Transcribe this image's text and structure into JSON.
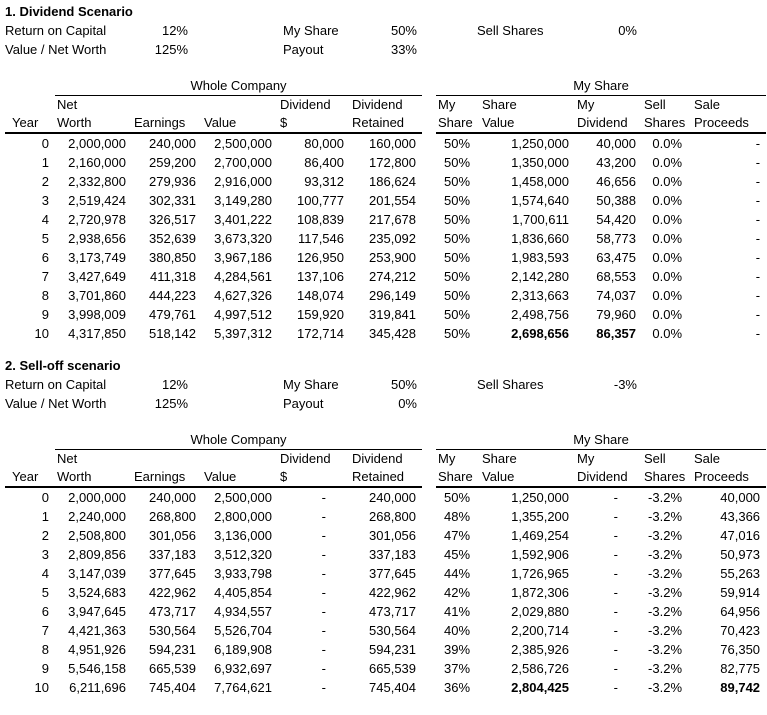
{
  "colors": {
    "text": "#000000",
    "background": "#ffffff",
    "border": "#000000"
  },
  "scenarios": [
    {
      "title": "1. Dividend Scenario",
      "params": [
        [
          {
            "label": "Return on Capital",
            "value": "12%"
          },
          {
            "label": "My Share",
            "value": "50%"
          },
          {
            "label": "Sell Shares",
            "value": "0%"
          }
        ],
        [
          {
            "label": "Value / Net Worth",
            "value": "125%"
          },
          {
            "label": "Payout",
            "value": "33%"
          }
        ]
      ],
      "table": {
        "group_headers": [
          "Whole Company",
          "My Share"
        ],
        "column_keys": [
          "year",
          "net-worth",
          "earnings",
          "value",
          "dividend-usd",
          "dividend-retained",
          "my-share-pct",
          "share-value",
          "my-dividend",
          "sell-shares-pct",
          "sale-proceeds"
        ],
        "column_headers": [
          [
            "Year"
          ],
          [
            "Net",
            "Worth"
          ],
          [
            "Earnings"
          ],
          [
            "Value"
          ],
          [
            "Dividend",
            "$"
          ],
          [
            "Dividend",
            "Retained"
          ],
          [
            "My",
            "Share"
          ],
          [
            "Share",
            "Value"
          ],
          [
            "My",
            "Dividend"
          ],
          [
            "Sell",
            "Shares"
          ],
          [
            "Sale",
            "Proceeds"
          ]
        ],
        "rows": [
          [
            "0",
            "2,000,000",
            "240,000",
            "2,500,000",
            "80,000",
            "160,000",
            "50%",
            "1,250,000",
            "40,000",
            "0.0%",
            "-"
          ],
          [
            "1",
            "2,160,000",
            "259,200",
            "2,700,000",
            "86,400",
            "172,800",
            "50%",
            "1,350,000",
            "43,200",
            "0.0%",
            "-"
          ],
          [
            "2",
            "2,332,800",
            "279,936",
            "2,916,000",
            "93,312",
            "186,624",
            "50%",
            "1,458,000",
            "46,656",
            "0.0%",
            "-"
          ],
          [
            "3",
            "2,519,424",
            "302,331",
            "3,149,280",
            "100,777",
            "201,554",
            "50%",
            "1,574,640",
            "50,388",
            "0.0%",
            "-"
          ],
          [
            "4",
            "2,720,978",
            "326,517",
            "3,401,222",
            "108,839",
            "217,678",
            "50%",
            "1,700,611",
            "54,420",
            "0.0%",
            "-"
          ],
          [
            "5",
            "2,938,656",
            "352,639",
            "3,673,320",
            "117,546",
            "235,092",
            "50%",
            "1,836,660",
            "58,773",
            "0.0%",
            "-"
          ],
          [
            "6",
            "3,173,749",
            "380,850",
            "3,967,186",
            "126,950",
            "253,900",
            "50%",
            "1,983,593",
            "63,475",
            "0.0%",
            "-"
          ],
          [
            "7",
            "3,427,649",
            "411,318",
            "4,284,561",
            "137,106",
            "274,212",
            "50%",
            "2,142,280",
            "68,553",
            "0.0%",
            "-"
          ],
          [
            "8",
            "3,701,860",
            "444,223",
            "4,627,326",
            "148,074",
            "296,149",
            "50%",
            "2,313,663",
            "74,037",
            "0.0%",
            "-"
          ],
          [
            "9",
            "3,998,009",
            "479,761",
            "4,997,512",
            "159,920",
            "319,841",
            "50%",
            "2,498,756",
            "79,960",
            "0.0%",
            "-"
          ],
          [
            "10",
            "4,317,850",
            "518,142",
            "5,397,312",
            "172,714",
            "345,428",
            "50%",
            "2,698,656",
            "86,357",
            "0.0%",
            "-"
          ]
        ],
        "bold_cells": [
          [
            10,
            7
          ],
          [
            10,
            8
          ]
        ]
      }
    },
    {
      "title": "2. Sell-off scenario",
      "params": [
        [
          {
            "label": "Return on Capital",
            "value": "12%"
          },
          {
            "label": "My Share",
            "value": "50%"
          },
          {
            "label": "Sell Shares",
            "value": "-3%"
          }
        ],
        [
          {
            "label": "Value / Net Worth",
            "value": "125%"
          },
          {
            "label": "Payout",
            "value": "0%"
          }
        ]
      ],
      "table": {
        "group_headers": [
          "Whole Company",
          "My Share"
        ],
        "column_keys": [
          "year",
          "net-worth",
          "earnings",
          "value",
          "dividend-usd",
          "dividend-retained",
          "my-share-pct",
          "share-value",
          "my-dividend",
          "sell-shares-pct",
          "sale-proceeds"
        ],
        "column_headers": [
          [
            "Year"
          ],
          [
            "Net",
            "Worth"
          ],
          [
            "Earnings"
          ],
          [
            "Value"
          ],
          [
            "Dividend",
            "$"
          ],
          [
            "Dividend",
            "Retained"
          ],
          [
            "My",
            "Share"
          ],
          [
            "Share",
            "Value"
          ],
          [
            "My",
            "Dividend"
          ],
          [
            "Sell",
            "Shares"
          ],
          [
            "Sale",
            "Proceeds"
          ]
        ],
        "rows": [
          [
            "0",
            "2,000,000",
            "240,000",
            "2,500,000",
            "-",
            "240,000",
            "50%",
            "1,250,000",
            "-",
            "-3.2%",
            "40,000"
          ],
          [
            "1",
            "2,240,000",
            "268,800",
            "2,800,000",
            "-",
            "268,800",
            "48%",
            "1,355,200",
            "-",
            "-3.2%",
            "43,366"
          ],
          [
            "2",
            "2,508,800",
            "301,056",
            "3,136,000",
            "-",
            "301,056",
            "47%",
            "1,469,254",
            "-",
            "-3.2%",
            "47,016"
          ],
          [
            "3",
            "2,809,856",
            "337,183",
            "3,512,320",
            "-",
            "337,183",
            "45%",
            "1,592,906",
            "-",
            "-3.2%",
            "50,973"
          ],
          [
            "4",
            "3,147,039",
            "377,645",
            "3,933,798",
            "-",
            "377,645",
            "44%",
            "1,726,965",
            "-",
            "-3.2%",
            "55,263"
          ],
          [
            "5",
            "3,524,683",
            "422,962",
            "4,405,854",
            "-",
            "422,962",
            "42%",
            "1,872,306",
            "-",
            "-3.2%",
            "59,914"
          ],
          [
            "6",
            "3,947,645",
            "473,717",
            "4,934,557",
            "-",
            "473,717",
            "41%",
            "2,029,880",
            "-",
            "-3.2%",
            "64,956"
          ],
          [
            "7",
            "4,421,363",
            "530,564",
            "5,526,704",
            "-",
            "530,564",
            "40%",
            "2,200,714",
            "-",
            "-3.2%",
            "70,423"
          ],
          [
            "8",
            "4,951,926",
            "594,231",
            "6,189,908",
            "-",
            "594,231",
            "39%",
            "2,385,926",
            "-",
            "-3.2%",
            "76,350"
          ],
          [
            "9",
            "5,546,158",
            "665,539",
            "6,932,697",
            "-",
            "665,539",
            "37%",
            "2,586,726",
            "-",
            "-3.2%",
            "82,775"
          ],
          [
            "10",
            "6,211,696",
            "745,404",
            "7,764,621",
            "-",
            "745,404",
            "36%",
            "2,804,425",
            "-",
            "-3.2%",
            "89,742"
          ]
        ],
        "bold_cells": [
          [
            10,
            7
          ],
          [
            10,
            10
          ]
        ]
      }
    }
  ]
}
